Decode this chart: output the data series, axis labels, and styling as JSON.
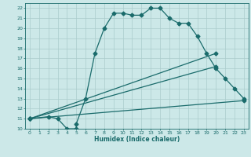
{
  "title": "",
  "xlabel": "Humidex (Indice chaleur)",
  "bg_color": "#cce8e8",
  "grid_color": "#aacccc",
  "line_color": "#1a6b6b",
  "xlim": [
    -0.5,
    23.5
  ],
  "ylim": [
    10,
    22.5
  ],
  "xticks": [
    0,
    1,
    2,
    3,
    4,
    5,
    6,
    7,
    8,
    9,
    10,
    11,
    12,
    13,
    14,
    15,
    16,
    17,
    18,
    19,
    20,
    21,
    22,
    23
  ],
  "yticks": [
    10,
    11,
    12,
    13,
    14,
    15,
    16,
    17,
    18,
    19,
    20,
    21,
    22
  ],
  "line1_x": [
    0,
    2,
    3,
    4,
    5,
    5,
    6,
    7,
    8,
    9,
    10,
    11,
    12,
    13,
    14,
    15,
    16,
    17,
    18,
    19,
    20,
    21,
    22,
    23
  ],
  "line1_y": [
    11,
    11.2,
    11,
    10,
    10,
    10.5,
    13,
    17.5,
    20,
    21.5,
    21.5,
    21.3,
    21.3,
    22,
    22,
    21,
    20.5,
    20.5,
    19.2,
    17.5,
    16,
    15,
    14,
    13
  ],
  "line2_x": [
    0,
    20
  ],
  "line2_y": [
    11,
    17.5
  ],
  "line3_x": [
    0,
    20
  ],
  "line3_y": [
    11,
    16.2
  ],
  "line4_x": [
    0,
    23
  ],
  "line4_y": [
    11,
    12.8
  ],
  "markersize": 2.5,
  "linewidth": 0.9
}
